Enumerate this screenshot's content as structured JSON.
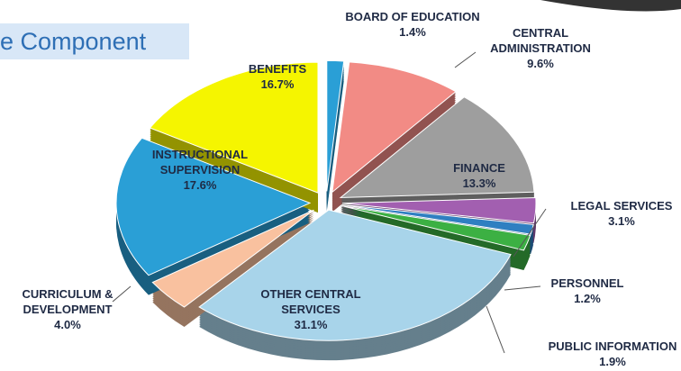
{
  "chart_data": {
    "type": "pie",
    "title": "e Component",
    "categories": [
      "BOARD OF EDUCATION",
      "CENTRAL ADMINISTRATION",
      "FINANCE",
      "LEGAL SERVICES",
      "PERSONNEL",
      "PUBLIC INFORMATION",
      "OTHER CENTRAL SERVICES",
      "CURRICULUM & DEVELOPMENT",
      "INSTRUCTIONAL SUPERVISION",
      "BENEFITS"
    ],
    "values": [
      1.4,
      9.6,
      13.3,
      3.1,
      1.2,
      1.9,
      31.1,
      4.0,
      17.6,
      16.7
    ],
    "value_labels": [
      "1.4%",
      "9.6%",
      "13.3%",
      "3.1%",
      "1.2%",
      "1.9%",
      "31.1%",
      "4.0%",
      "17.6%",
      "16.7%"
    ],
    "colors": [
      "#2a9fd6",
      "#f28b85",
      "#9e9e9e",
      "#a25fb0",
      "#2f7fc1",
      "#3cb043",
      "#a8d4ea",
      "#f9c19f",
      "#2a9fd6",
      "#f5f500"
    ]
  }
}
